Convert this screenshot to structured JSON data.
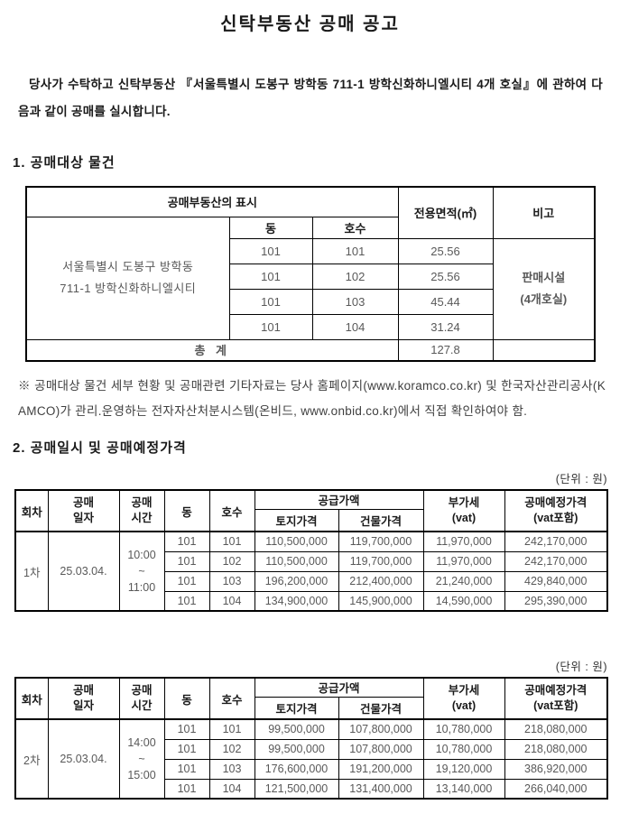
{
  "page": {
    "title": "신탁부동산 공매 공고",
    "intro": "당사가 수탁하고 신탁부동산 『서울특별시 도봉구 방학동 711-1 방학신화하니엘시티 4개 호실』에 관하여 다음과 같이 공매를 실시합니다.",
    "section1_heading": "1. 공매대상 물건",
    "section2_heading": "2. 공매일시 및 공매예정가격",
    "note": "※ 공매대상 물건 세부 현황 및 공매관련 기타자료는 당사 홈페이지(www.koramco.co.kr) 및 한국자산관리공사(KAMCO)가 관리.운영하는 전자자산처분시스템(온비드, www.onbid.co.kr)에서 직접 확인하여야 함.",
    "unit_label": "(단위 : 원)"
  },
  "colors": {
    "text_black": "#1a1a1a",
    "data_gray": "#595959",
    "note_gray": "#404040",
    "border": "#000000",
    "background": "#ffffff"
  },
  "property_table": {
    "header_display": "공매부동산의 표시",
    "header_area": "전용면적(㎡)",
    "header_remark": "비고",
    "header_dong": "동",
    "header_hosu": "호수",
    "address_line1": "서울특별시 도봉구 방학동",
    "address_line2": "711-1 방학신화하니엘시티",
    "rows": [
      {
        "dong": "101",
        "hosu": "101",
        "area": "25.56"
      },
      {
        "dong": "101",
        "hosu": "102",
        "area": "25.56"
      },
      {
        "dong": "101",
        "hosu": "103",
        "area": "45.44"
      },
      {
        "dong": "101",
        "hosu": "104",
        "area": "31.24"
      }
    ],
    "remark_line1": "판매시설",
    "remark_line2": "(4개호실)",
    "total_label": "총 계",
    "total_area": "127.8"
  },
  "auction_headers": {
    "round": "회차",
    "date_line1": "공매",
    "date_line2": "일자",
    "time_line1": "공매",
    "time_line2": "시간",
    "dong": "동",
    "hosu": "호수",
    "supply": "공급가액",
    "land": "토지가격",
    "building": "건물가격",
    "vat_line1": "부가세",
    "vat_line2": "(vat)",
    "price_line1": "공매예정가격",
    "price_line2": "(vat포함)"
  },
  "auction_rounds": [
    {
      "round": "1차",
      "date": "25.03.04.",
      "time_start": "10:00",
      "time_separator": "~",
      "time_end": "11:00",
      "rows": [
        {
          "dong": "101",
          "hosu": "101",
          "land": "110,500,000",
          "building": "119,700,000",
          "vat": "11,970,000",
          "price": "242,170,000"
        },
        {
          "dong": "101",
          "hosu": "102",
          "land": "110,500,000",
          "building": "119,700,000",
          "vat": "11,970,000",
          "price": "242,170,000"
        },
        {
          "dong": "101",
          "hosu": "103",
          "land": "196,200,000",
          "building": "212,400,000",
          "vat": "21,240,000",
          "price": "429,840,000"
        },
        {
          "dong": "101",
          "hosu": "104",
          "land": "134,900,000",
          "building": "145,900,000",
          "vat": "14,590,000",
          "price": "295,390,000"
        }
      ]
    },
    {
      "round": "2차",
      "date": "25.03.04.",
      "time_start": "14:00",
      "time_separator": "~",
      "time_end": "15:00",
      "rows": [
        {
          "dong": "101",
          "hosu": "101",
          "land": "99,500,000",
          "building": "107,800,000",
          "vat": "10,780,000",
          "price": "218,080,000"
        },
        {
          "dong": "101",
          "hosu": "102",
          "land": "99,500,000",
          "building": "107,800,000",
          "vat": "10,780,000",
          "price": "218,080,000"
        },
        {
          "dong": "101",
          "hosu": "103",
          "land": "176,600,000",
          "building": "191,200,000",
          "vat": "19,120,000",
          "price": "386,920,000"
        },
        {
          "dong": "101",
          "hosu": "104",
          "land": "121,500,000",
          "building": "131,400,000",
          "vat": "13,140,000",
          "price": "266,040,000"
        }
      ]
    }
  ]
}
